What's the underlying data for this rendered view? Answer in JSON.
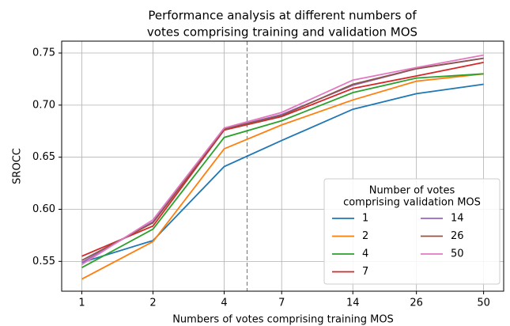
{
  "chart_data": {
    "type": "line",
    "title": [
      "Performance analysis at different numbers of",
      "votes comprising training and validation MOS"
    ],
    "xlabel": "Numbers of votes comprising training MOS",
    "ylabel": "SROCC",
    "x": [
      1,
      2,
      4,
      7,
      14,
      26,
      50
    ],
    "xscale": "log",
    "xlim": [
      0.822,
      60.8
    ],
    "xticks": [
      1,
      2,
      4,
      7,
      14,
      26,
      50
    ],
    "ylim": [
      0.5214,
      0.7614
    ],
    "yticks": [
      0.55,
      {
        "value": 0.6,
        "label": "0.60"
      },
      0.65,
      {
        "value": 0.7,
        "label": "0.70"
      },
      0.75
    ],
    "grid": true,
    "vline": 5,
    "legend_title": [
      "Number of votes",
      "comprising validation MOS"
    ],
    "legend_position": "lower right",
    "series": [
      {
        "name": "1",
        "color": "#1f77b4",
        "values": [
          0.549,
          0.57,
          0.641,
          0.666,
          0.696,
          0.711,
          0.72
        ]
      },
      {
        "name": "2",
        "color": "#ff7f0e",
        "values": [
          0.533,
          0.569,
          0.658,
          0.681,
          0.705,
          0.723,
          0.73
        ]
      },
      {
        "name": "4",
        "color": "#2ca02c",
        "values": [
          0.544,
          0.581,
          0.669,
          0.685,
          0.712,
          0.726,
          0.73
        ]
      },
      {
        "name": "7",
        "color": "#d62728",
        "values": [
          0.555,
          0.584,
          0.676,
          0.689,
          0.716,
          0.728,
          0.741
        ]
      },
      {
        "name": "14",
        "color": "#9467bd",
        "values": [
          0.549,
          0.588,
          0.677,
          0.691,
          0.719,
          0.735,
          0.745
        ]
      },
      {
        "name": "26",
        "color": "#8c564b",
        "values": [
          0.551,
          0.587,
          0.677,
          0.69,
          0.72,
          0.735,
          0.745
        ]
      },
      {
        "name": "50",
        "color": "#e377c2",
        "values": [
          0.547,
          0.59,
          0.678,
          0.693,
          0.724,
          0.736,
          0.748
        ]
      }
    ]
  }
}
